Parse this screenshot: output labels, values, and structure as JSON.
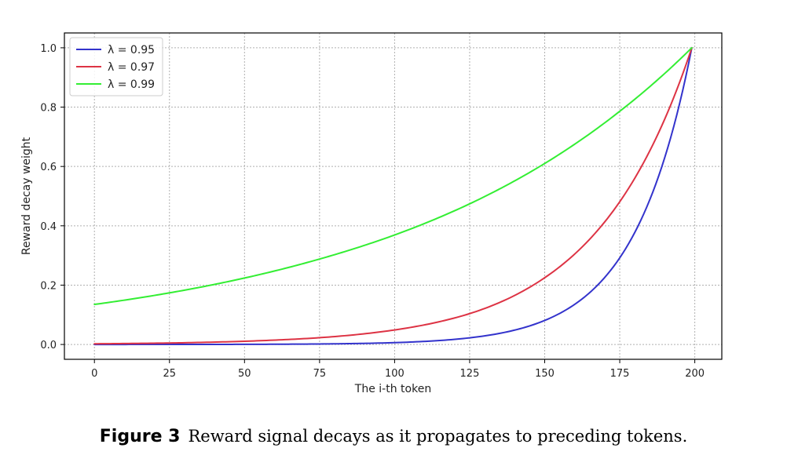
{
  "chart_data": {
    "type": "line",
    "xlabel": "The i-th token",
    "ylabel": "Reward decay weight",
    "xlim": [
      -10,
      209
    ],
    "ylim": [
      -0.05,
      1.05
    ],
    "xticks": [
      0,
      25,
      50,
      75,
      100,
      125,
      150,
      175,
      200
    ],
    "yticks": [
      0.0,
      0.2,
      0.4,
      0.6,
      0.8,
      1.0
    ],
    "xtick_labels": [
      "0",
      "25",
      "50",
      "75",
      "100",
      "125",
      "150",
      "175",
      "200"
    ],
    "ytick_labels": [
      "0.0",
      "0.2",
      "0.4",
      "0.6",
      "0.8",
      "1.0"
    ],
    "grid": true,
    "legend_position": "top-left",
    "x": [
      0,
      25,
      50,
      75,
      100,
      125,
      150,
      175,
      199
    ],
    "series": [
      {
        "name": "λ = 0.95",
        "color": "#3333cc",
        "values": [
          4e-05,
          0.00013,
          0.0005,
          0.0017,
          0.0062,
          0.0224,
          0.081,
          0.292,
          1.0
        ]
      },
      {
        "name": "λ = 0.97",
        "color": "#dd3344",
        "values": [
          0.0023,
          0.005,
          0.0109,
          0.0229,
          0.0489,
          0.104,
          0.225,
          0.481,
          1.0
        ]
      },
      {
        "name": "λ = 0.99",
        "color": "#33ee33",
        "values": [
          0.135,
          0.174,
          0.224,
          0.288,
          0.369,
          0.474,
          0.61,
          0.786,
          1.0
        ]
      }
    ]
  },
  "caption": {
    "label": "Figure 3",
    "text": "Reward signal decays as it propagates to preceding tokens."
  }
}
